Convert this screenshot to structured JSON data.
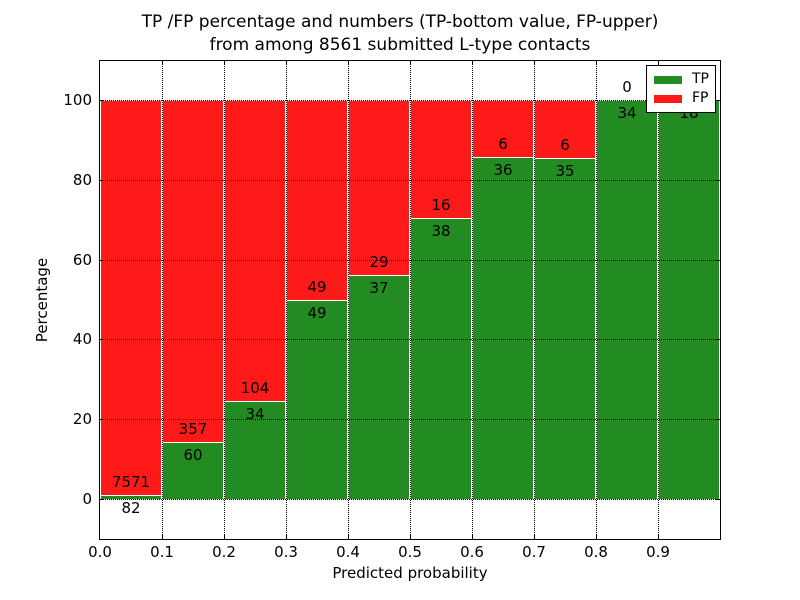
{
  "title": {
    "line1": "TP /FP percentage and numbers (TP-bottom value, FP-upper)",
    "line2": "from among 8561 submitted L-type contacts"
  },
  "axes": {
    "xlabel": "Predicted probability",
    "ylabel": "Percentage",
    "x_tick_labels": [
      "0.0",
      "0.1",
      "0.2",
      "0.3",
      "0.4",
      "0.5",
      "0.6",
      "0.7",
      "0.8",
      "0.9"
    ],
    "y_tick_labels": [
      "0",
      "20",
      "40",
      "60",
      "80",
      "100"
    ],
    "y_tick_values": [
      0,
      20,
      40,
      60,
      80,
      100
    ],
    "xlim": [
      0.0,
      1.0
    ],
    "ylim": [
      -10,
      110
    ],
    "grid_style": "dotted"
  },
  "legend": {
    "position": "upper-right",
    "items": [
      {
        "label": "TP",
        "color": "#228b22"
      },
      {
        "label": "FP",
        "color": "#ff1a1a"
      }
    ]
  },
  "chart_data": {
    "type": "bar",
    "stacked": true,
    "x_bin_width": 0.1,
    "total_contacts": 8561,
    "tp_color": "#228b22",
    "fp_color": "#ff1a1a",
    "categories": [
      "0.0-0.1",
      "0.1-0.2",
      "0.2-0.3",
      "0.3-0.4",
      "0.4-0.5",
      "0.5-0.6",
      "0.6-0.7",
      "0.7-0.8",
      "0.8-0.9",
      "0.9-1.0"
    ],
    "bins": [
      {
        "x_start": 0.0,
        "x_end": 0.1,
        "tp": 82,
        "fp": 7571,
        "tp_pct": 1.07,
        "fp_label_hidden": false
      },
      {
        "x_start": 0.1,
        "x_end": 0.2,
        "tp": 60,
        "fp": 357,
        "tp_pct": 14.39,
        "fp_label_hidden": false
      },
      {
        "x_start": 0.2,
        "x_end": 0.3,
        "tp": 34,
        "fp": 104,
        "tp_pct": 24.64,
        "fp_label_hidden": false
      },
      {
        "x_start": 0.3,
        "x_end": 0.4,
        "tp": 49,
        "fp": 49,
        "tp_pct": 50.0,
        "fp_label_hidden": false
      },
      {
        "x_start": 0.4,
        "x_end": 0.5,
        "tp": 37,
        "fp": 29,
        "tp_pct": 56.06,
        "fp_label_hidden": false
      },
      {
        "x_start": 0.5,
        "x_end": 0.6,
        "tp": 38,
        "fp": 16,
        "tp_pct": 70.37,
        "fp_label_hidden": false
      },
      {
        "x_start": 0.6,
        "x_end": 0.7,
        "tp": 36,
        "fp": 6,
        "tp_pct": 85.71,
        "fp_label_hidden": false
      },
      {
        "x_start": 0.7,
        "x_end": 0.8,
        "tp": 35,
        "fp": 6,
        "tp_pct": 85.37,
        "fp_label_hidden": false
      },
      {
        "x_start": 0.8,
        "x_end": 0.9,
        "tp": 34,
        "fp": 0,
        "tp_pct": 100.0,
        "fp_label_hidden": false
      },
      {
        "x_start": 0.9,
        "x_end": 1.0,
        "tp": 18,
        "fp": 0,
        "tp_pct": 100.0,
        "fp_label_hidden": true
      }
    ]
  }
}
